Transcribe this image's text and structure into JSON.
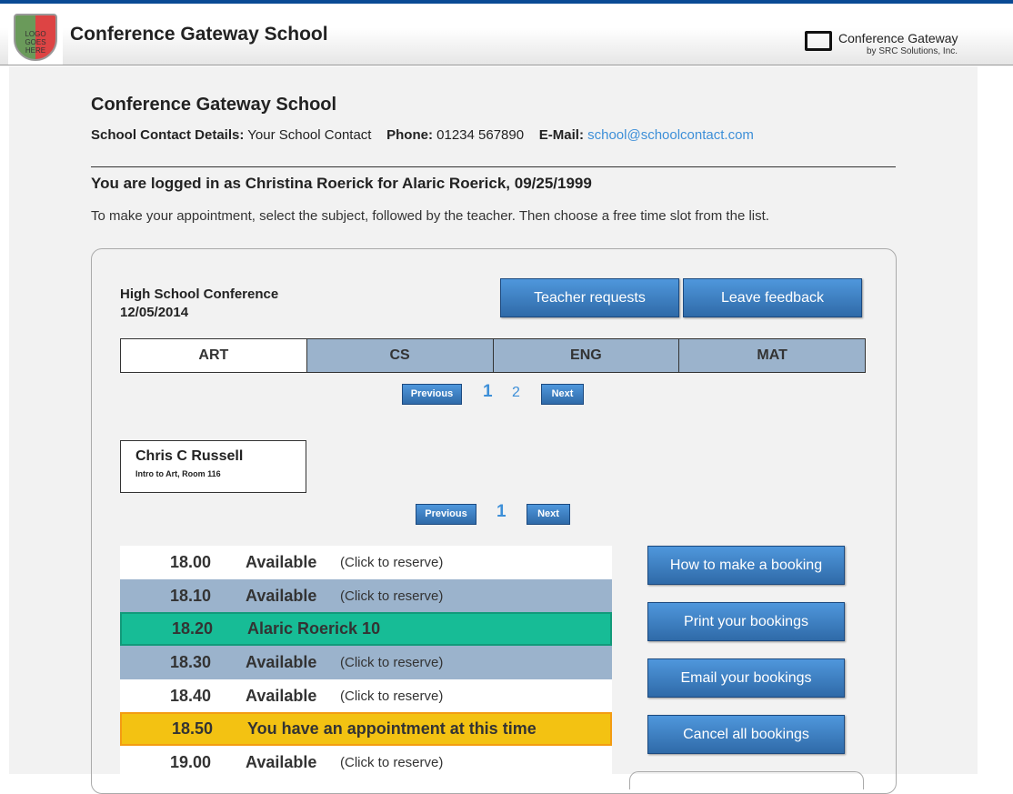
{
  "header": {
    "title": "Conference Gateway School",
    "logo_text": "LOGO GOES HERE",
    "brand_name": "Conference Gateway",
    "brand_sub": "by SRC Solutions, Inc."
  },
  "school": {
    "name": "Conference Gateway School",
    "contact_label": "School Contact Details:",
    "contact_value": "Your School Contact",
    "phone_label": "Phone:",
    "phone_value": "01234 567890",
    "email_label": "E-Mail:",
    "email_value": "school@schoolcontact.com"
  },
  "logged_in": "You are logged in as Christina Roerick for Alaric Roerick, 09/25/1999",
  "instructions": "To make your appointment, select the subject, followed by the teacher. Then choose a free time slot from the list.",
  "conference": {
    "name": "High School Conference",
    "date": "12/05/2014",
    "teacher_requests": "Teacher requests",
    "leave_feedback": "Leave feedback"
  },
  "tabs": [
    "ART",
    "CS",
    "ENG",
    "MAT"
  ],
  "subject_pager": {
    "previous": "Previous",
    "next": "Next",
    "pages": [
      "1",
      "2"
    ]
  },
  "teacher": {
    "name": "Chris C Russell",
    "room": "Intro to Art, Room 116"
  },
  "teacher_pager": {
    "previous": "Previous",
    "next": "Next",
    "pages": [
      "1"
    ]
  },
  "slots": [
    {
      "time": "18.00",
      "status": "Available",
      "note": "(Click to reserve)"
    },
    {
      "time": "18.10",
      "status": "Available",
      "note": "(Click to reserve)"
    },
    {
      "time": "18.20",
      "status": "Alaric Roerick 10",
      "note": ""
    },
    {
      "time": "18.30",
      "status": "Available",
      "note": "(Click to reserve)"
    },
    {
      "time": "18.40",
      "status": "Available",
      "note": "(Click to reserve)"
    },
    {
      "time": "18.50",
      "status": "You have an appointment at this time",
      "note": ""
    },
    {
      "time": "19.00",
      "status": "Available",
      "note": "(Click to reserve)"
    }
  ],
  "actions": [
    "How to make a booking",
    "Print your bookings",
    "Email your bookings",
    "Cancel all bookings"
  ],
  "colors": {
    "accent": "#3d8fd8",
    "booked": "#17bc96",
    "mine": "#f3c212",
    "alt_row": "#9bb3cc"
  }
}
